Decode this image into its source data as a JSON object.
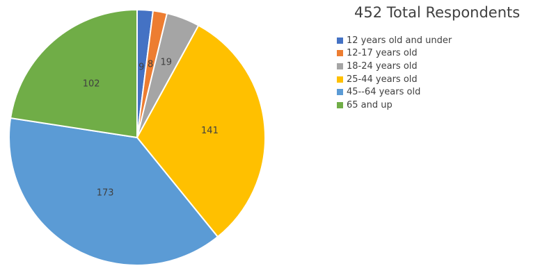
{
  "chart_data": {
    "type": "pie",
    "title": "452 Total Respondents",
    "categories": [
      "12 years old and under",
      "12-17 years old",
      "18-24 years old",
      "25-44 years old",
      "45--64 years old",
      "65 and up"
    ],
    "values": [
      9,
      8,
      19,
      141,
      173,
      102
    ],
    "labels": [
      "9",
      "8",
      "19",
      "141",
      "173",
      "102"
    ],
    "colors": [
      "#4472C4",
      "#ED7D31",
      "#A5A5A5",
      "#FFC000",
      "#5B9BD5",
      "#70AD47"
    ],
    "legend_position": "right"
  }
}
